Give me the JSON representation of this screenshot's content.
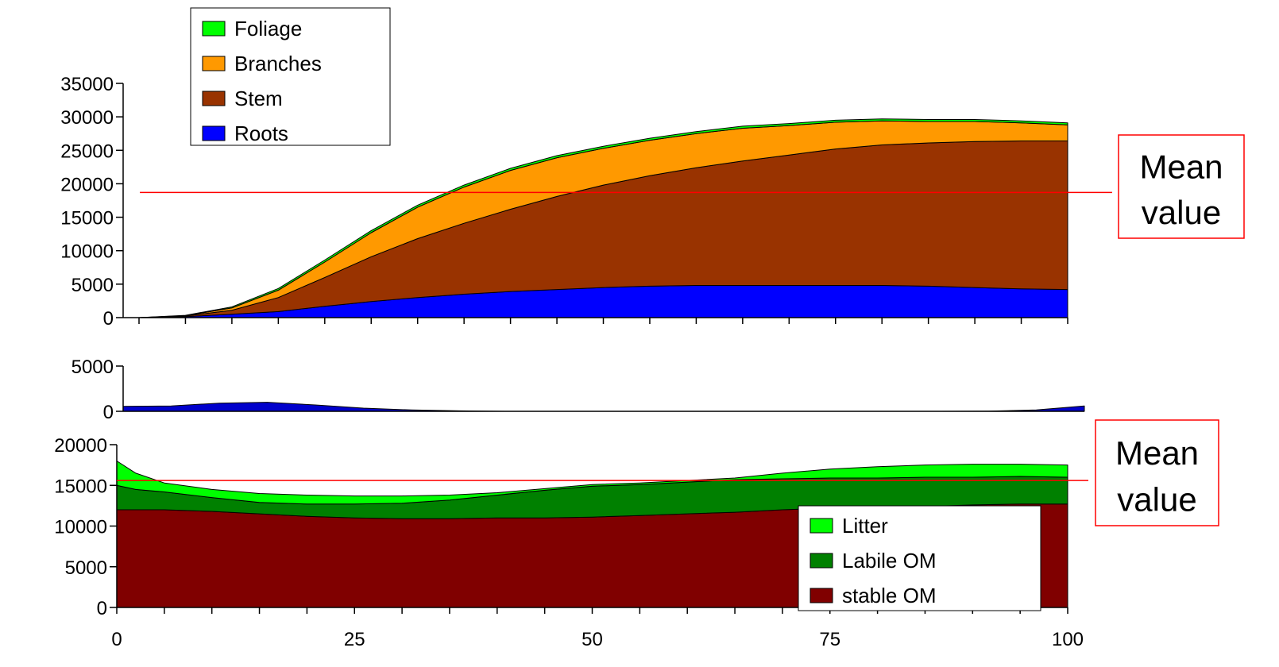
{
  "chart_data": [
    {
      "type": "area",
      "stacked": true,
      "title": "",
      "xlabel": "",
      "ylabel": "",
      "ylim": [
        0,
        35000
      ],
      "xlim": [
        0,
        100
      ],
      "y_ticks": [
        "0",
        "5000",
        "10000",
        "15000",
        "20000",
        "25000",
        "30000",
        "35000"
      ],
      "x": [
        0,
        5,
        10,
        15,
        20,
        25,
        30,
        35,
        40,
        45,
        50,
        55,
        60,
        65,
        70,
        75,
        80,
        85,
        90,
        95,
        100
      ],
      "series": [
        {
          "name": "Roots",
          "color": "#0000ff",
          "values": [
            0,
            150,
            500,
            900,
            1700,
            2400,
            3000,
            3500,
            3900,
            4200,
            4500,
            4700,
            4800,
            4800,
            4800,
            4800,
            4800,
            4700,
            4500,
            4300,
            4200
          ]
        },
        {
          "name": "Stem",
          "color": "#993300",
          "values": [
            0,
            100,
            600,
            2100,
            4300,
            6700,
            8800,
            10600,
            12300,
            13900,
            15300,
            16500,
            17600,
            18600,
            19500,
            20400,
            21000,
            21400,
            21800,
            22100,
            22200
          ]
        },
        {
          "name": "Branches",
          "color": "#ff9900",
          "values": [
            0,
            50,
            350,
            1100,
            2300,
            3600,
            4700,
            5400,
            5800,
            5800,
            5500,
            5300,
            5100,
            4900,
            4400,
            4000,
            3600,
            3200,
            3000,
            2700,
            2400
          ]
        },
        {
          "name": "Foliage",
          "color": "#00ff00",
          "values": [
            0,
            50,
            150,
            250,
            300,
            300,
            300,
            300,
            300,
            300,
            300,
            300,
            300,
            300,
            300,
            300,
            300,
            300,
            300,
            300,
            300
          ]
        }
      ],
      "mean_line": {
        "value": 18700,
        "label_line1": "Mean",
        "label_line2": "value",
        "color": "#ff0000"
      },
      "legend": {
        "placement": "top-left",
        "entries": [
          "Foliage",
          "Branches",
          "Stem",
          "Roots"
        ]
      }
    },
    {
      "type": "area",
      "title": "",
      "ylim": [
        0,
        5000
      ],
      "y_ticks": [
        "0",
        "5000"
      ],
      "x": [
        0,
        5,
        10,
        15,
        20,
        25,
        30,
        35,
        40,
        45,
        50,
        55,
        60,
        65,
        70,
        75,
        80,
        85,
        90,
        95,
        100
      ],
      "series": [
        {
          "color": "#0000cc",
          "values": [
            550,
            600,
            900,
            1000,
            700,
            350,
            150,
            50,
            0,
            0,
            0,
            0,
            0,
            0,
            0,
            0,
            0,
            0,
            30,
            150,
            600
          ]
        }
      ]
    },
    {
      "type": "area",
      "stacked": true,
      "title": "",
      "ylim": [
        0,
        20000
      ],
      "xlim": [
        0,
        100
      ],
      "y_ticks": [
        "0",
        "5000",
        "10000",
        "15000",
        "20000"
      ],
      "x_ticks": [
        "0",
        "25",
        "50",
        "75",
        "100"
      ],
      "x": [
        0,
        2,
        5,
        10,
        15,
        20,
        25,
        30,
        35,
        40,
        45,
        50,
        55,
        60,
        65,
        70,
        75,
        80,
        85,
        90,
        95,
        100
      ],
      "series": [
        {
          "name": "stable OM",
          "color": "#800000",
          "values": [
            12000,
            12000,
            12000,
            11800,
            11500,
            11200,
            11000,
            10900,
            10900,
            11000,
            11000,
            11100,
            11300,
            11500,
            11700,
            12000,
            12200,
            12300,
            12400,
            12600,
            12700,
            12700
          ]
        },
        {
          "name": "Labile OM",
          "color": "#008000",
          "values": [
            3000,
            2500,
            2200,
            1700,
            1400,
            1500,
            1700,
            1900,
            2300,
            2800,
            3400,
            3800,
            3800,
            3900,
            4000,
            3800,
            3700,
            3600,
            3600,
            3400,
            3400,
            3300
          ]
        },
        {
          "name": "Litter",
          "color": "#00ff00",
          "values": [
            3000,
            2000,
            1100,
            1000,
            1100,
            1100,
            1000,
            900,
            600,
            300,
            200,
            200,
            200,
            200,
            200,
            700,
            1100,
            1400,
            1500,
            1600,
            1500,
            1500
          ]
        }
      ],
      "mean_line": {
        "value": 15600,
        "label_line1": "Mean",
        "label_line2": "value",
        "color": "#ff0000"
      },
      "legend": {
        "placement": "bottom-right",
        "entries": [
          "Litter",
          "Labile OM",
          " stable OM"
        ]
      }
    }
  ]
}
